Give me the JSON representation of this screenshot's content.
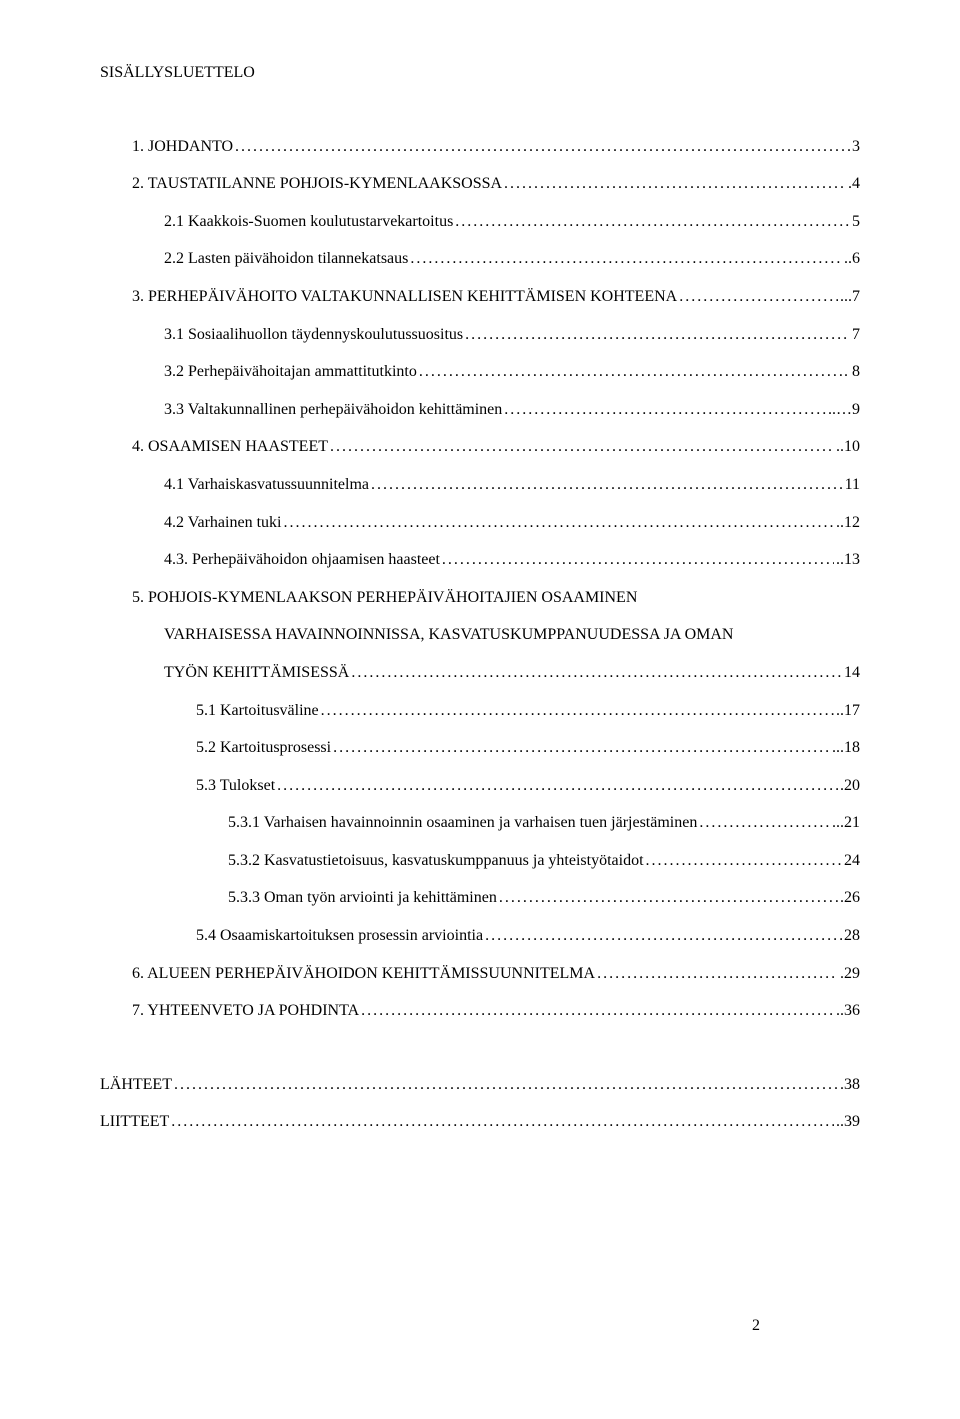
{
  "title": "SISÄLLYSLUETTELO",
  "page_number": "2",
  "colors": {
    "background": "#ffffff",
    "text": "#000000"
  },
  "typography": {
    "font_family": "Times New Roman",
    "base_fontsize": 16
  },
  "entries": [
    {
      "level": 1,
      "label": "1.  JOHDANTO",
      "page": "3",
      "gap_before": false
    },
    {
      "level": 1,
      "label": "2.  TAUSTATILANNE POHJOIS-KYMENLAAKSOSSA",
      "page": ".4",
      "gap_before": false
    },
    {
      "level": 2,
      "label": "2.1 Kaakkois-Suomen koulutustarvekartoitus",
      "page": "5",
      "gap_before": false
    },
    {
      "level": 2,
      "label": "2.2 Lasten päivähoidon tilannekatsaus",
      "page": "..6",
      "gap_before": false
    },
    {
      "level": 1,
      "label": "3.  PERHEPÄIVÄHOITO VALTAKUNNALLISEN KEHITTÄMISEN KOHTEENA",
      "page": "...7",
      "gap_before": false
    },
    {
      "level": 2,
      "label": "3.1 Sosiaalihuollon täydennyskoulutussuositus",
      "page": "7",
      "gap_before": false
    },
    {
      "level": 2,
      "label": "3.2 Perhepäivähoitajan ammattitutkinto",
      "page": ". 8",
      "gap_before": false
    },
    {
      "level": 2,
      "label": "3.3 Valtakunnallinen perhepäivähoidon kehittäminen",
      "page": "..…9",
      "gap_before": false
    },
    {
      "level": 1,
      "label": "4.  OSAAMISEN HAASTEET",
      "page": "..10",
      "gap_before": false
    },
    {
      "level": 2,
      "label": "4.1 Varhaiskasvatussuunnitelma",
      "page": "11",
      "gap_before": false
    },
    {
      "level": 2,
      "label": "4.2 Varhainen tuki",
      "page": "..12",
      "gap_before": false
    },
    {
      "level": 2,
      "label": "4.3. Perhepäivähoidon ohjaamisen haasteet",
      "page": "..13",
      "gap_before": false
    },
    {
      "level": 1,
      "label": "5.  POHJOIS-KYMENLAAKSON PERHEPÄIVÄHOITAJIEN OSAAMINEN",
      "page": "",
      "gap_before": false,
      "no_dots": true
    },
    {
      "level": 2,
      "label": "VARHAISESSA HAVAINNOINNISSA, KASVATUSKUMPPANUUDESSA JA OMAN",
      "page": "",
      "gap_before": false,
      "no_dots": true
    },
    {
      "level": 2,
      "label": "TYÖN KEHITTÄMISESSÄ",
      "page": "14",
      "gap_before": false
    },
    {
      "level": 3,
      "label": "5.1 Kartoitusväline",
      "page": "..17",
      "gap_before": false
    },
    {
      "level": 3,
      "label": "5.2 Kartoitusprosessi",
      "page": "...18",
      "gap_before": false
    },
    {
      "level": 3,
      "label": "5.3 Tulokset",
      "page": ".20",
      "gap_before": false
    },
    {
      "level": 4,
      "label": "5.3.1 Varhaisen havainnoinnin osaaminen ja varhaisen tuen järjestäminen",
      "page": "...21",
      "gap_before": false
    },
    {
      "level": 4,
      "label": "5.3.2 Kasvatustietoisuus, kasvatuskumppanuus ja yhteistyötaidot",
      "page": "24",
      "gap_before": false
    },
    {
      "level": 4,
      "label": "5.3.3 Oman työn arviointi ja kehittäminen",
      "page": ".26",
      "gap_before": false
    },
    {
      "level": 3,
      "label": "5.4 Osaamiskartoituksen prosessin arviointia",
      "page": "28",
      "gap_before": false
    },
    {
      "level": 1,
      "label": "6.   ALUEEN PERHEPÄIVÄHOIDON KEHITTÄMISSUUNNITELMA",
      "page": ".29",
      "gap_before": false
    },
    {
      "level": 1,
      "label": "7.   YHTEENVETO JA POHDINTA",
      "page": "..36",
      "gap_before": false
    },
    {
      "level": 0,
      "label": "LÄHTEET",
      "page": ".38",
      "gap_before": true
    },
    {
      "level": 0,
      "label": "LIITTEET",
      "page": "..39",
      "gap_before": false
    }
  ]
}
